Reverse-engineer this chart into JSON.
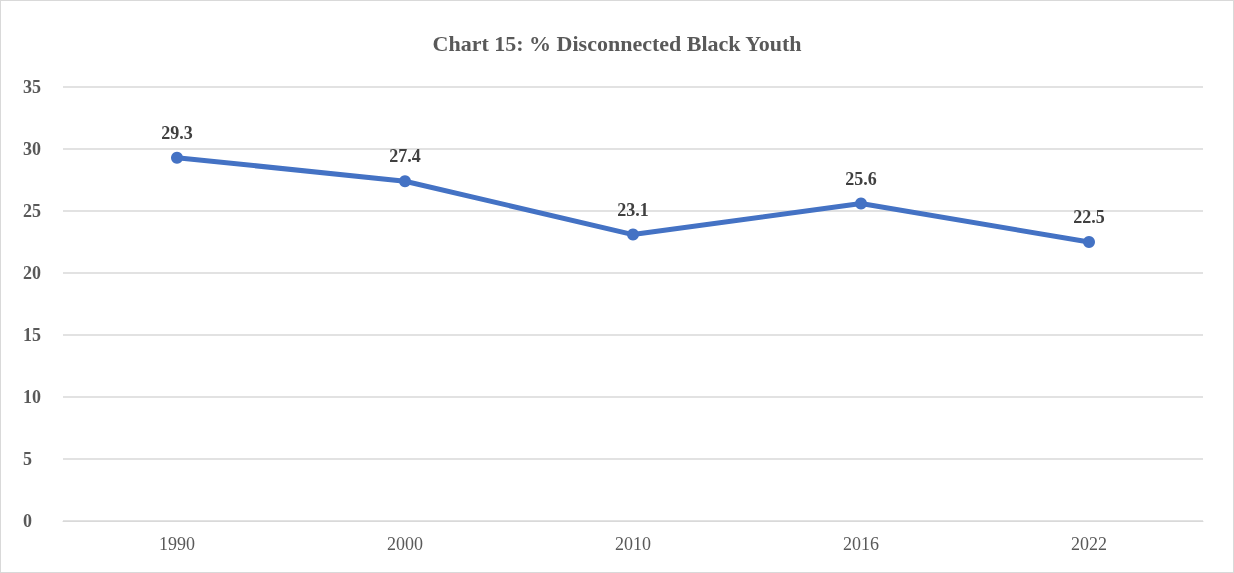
{
  "chart_data": {
    "type": "line",
    "title": "Chart 15: % Disconnected Black Youth",
    "categories": [
      "1990",
      "2000",
      "2010",
      "2016",
      "2022"
    ],
    "series": [
      {
        "color": "#4472c4",
        "values": [
          29.3,
          27.4,
          23.1,
          25.6,
          22.5
        ]
      }
    ],
    "ylim": [
      0,
      35
    ],
    "yticks": [
      0,
      5,
      10,
      15,
      20,
      25,
      30,
      35
    ],
    "grid": "y",
    "data_labels": true,
    "marker": "circle"
  }
}
